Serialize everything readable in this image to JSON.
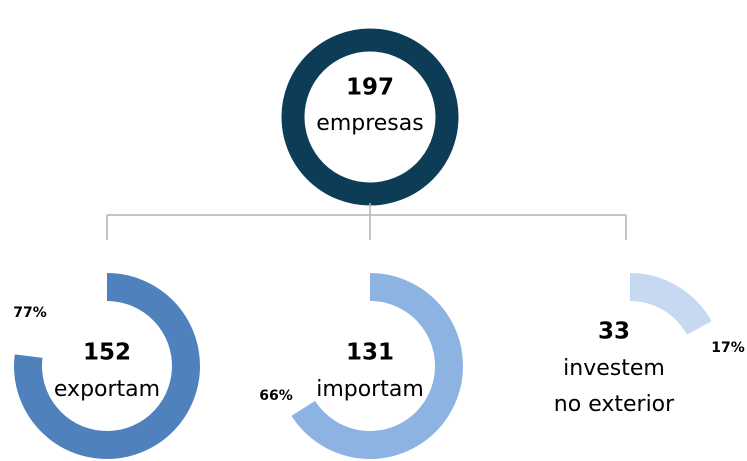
{
  "total": {
    "value": 197,
    "label": "empresas",
    "color": "#0d3d56"
  },
  "items": [
    {
      "value": 152,
      "label": [
        "exportam"
      ],
      "percent": 77,
      "percent_label": "77%",
      "color": "#4f81bd"
    },
    {
      "value": 131,
      "label": [
        "importam"
      ],
      "percent": 66,
      "percent_label": "66%",
      "color": "#8db3e2"
    },
    {
      "value": 33,
      "label": [
        "investem",
        "no exterior"
      ],
      "percent": 17,
      "percent_label": "17%",
      "color": "#c6d9f1"
    }
  ]
}
